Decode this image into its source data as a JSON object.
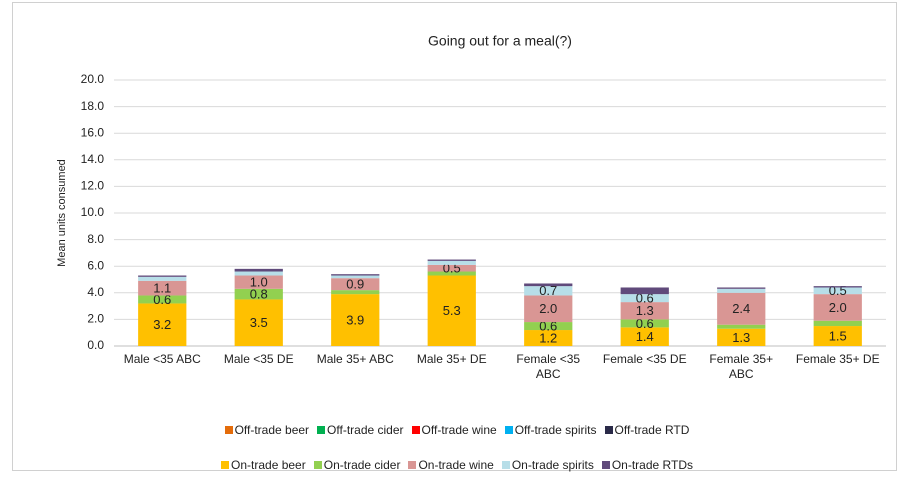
{
  "chart_data": {
    "type": "stacked_bar",
    "title": "Going out for a meal(?)",
    "y_label": "Mean units consumed",
    "categories": [
      "Male <35 ABC",
      "Male <35 DE",
      "Male 35+ ABC",
      "Male 35+ DE",
      "Female <35 ABC",
      "Female <35 DE",
      "Female 35+ ABC",
      "Female 35+ DE"
    ],
    "series": [
      {
        "name": "Off-trade beer",
        "color": "#e46c0a",
        "values": [
          0,
          0,
          0,
          0,
          0,
          0,
          0,
          0
        ]
      },
      {
        "name": "Off-trade cider",
        "color": "#00b050",
        "values": [
          0,
          0,
          0,
          0,
          0,
          0,
          0,
          0
        ]
      },
      {
        "name": "Off-trade wine",
        "color": "#ff0000",
        "values": [
          0,
          0,
          0,
          0,
          0,
          0,
          0,
          0
        ]
      },
      {
        "name": "Off-trade spirits",
        "color": "#00b0f0",
        "values": [
          0,
          0,
          0,
          0,
          0,
          0,
          0,
          0
        ]
      },
      {
        "name": "Off-trade RTD",
        "color": "#2a2a48",
        "values": [
          0,
          0,
          0,
          0,
          0,
          0,
          0,
          0
        ]
      },
      {
        "name": "On-trade beer",
        "color": "#ffc000",
        "values": [
          3.2,
          3.5,
          3.9,
          5.3,
          1.2,
          1.4,
          1.3,
          1.5
        ],
        "value_labels": [
          "3.2",
          "3.5",
          "3.9",
          "5.3",
          "1.2",
          "1.4",
          "1.3",
          "1.5"
        ]
      },
      {
        "name": "On-trade cider",
        "color": "#92d050",
        "values": [
          0.6,
          0.8,
          0.3,
          0.3,
          0.6,
          0.6,
          0.3,
          0.4
        ],
        "value_labels": [
          "0.6",
          "0.8",
          null,
          null,
          "0.6",
          "0.6",
          null,
          null
        ]
      },
      {
        "name": "On-trade wine",
        "color": "#d99694",
        "values": [
          1.1,
          1.0,
          0.9,
          0.5,
          2.0,
          1.3,
          2.4,
          2.0
        ],
        "value_labels": [
          "1.1",
          "1.0",
          "0.9",
          "0.5",
          "2.0",
          "1.3",
          "2.4",
          "2.0"
        ]
      },
      {
        "name": "On-trade spirits",
        "color": "#b7dee8",
        "values": [
          0.3,
          0.3,
          0.2,
          0.3,
          0.7,
          0.6,
          0.3,
          0.5
        ],
        "value_labels": [
          null,
          null,
          null,
          null,
          "0.7",
          "0.6",
          null,
          "0.5"
        ]
      },
      {
        "name": "On-trade RTDs",
        "color": "#604a7b",
        "values": [
          0.1,
          0.2,
          0.1,
          0.1,
          0.2,
          0.5,
          0.1,
          0.1
        ]
      }
    ],
    "ylim": [
      0,
      20
    ],
    "yticks": [
      {
        "value": 0,
        "label": "0.0"
      },
      {
        "value": 2,
        "label": "2.0"
      },
      {
        "value": 4,
        "label": "4.0"
      },
      {
        "value": 6,
        "label": "6.0"
      },
      {
        "value": 8,
        "label": "8.0"
      },
      {
        "value": 10,
        "label": "10.0"
      },
      {
        "value": 12,
        "label": "12.0"
      },
      {
        "value": 14,
        "label": "14.0"
      },
      {
        "value": 16,
        "label": "16.0"
      },
      {
        "value": 18,
        "label": "18.0"
      },
      {
        "value": 20,
        "label": "20.0"
      }
    ],
    "grid": true
  }
}
